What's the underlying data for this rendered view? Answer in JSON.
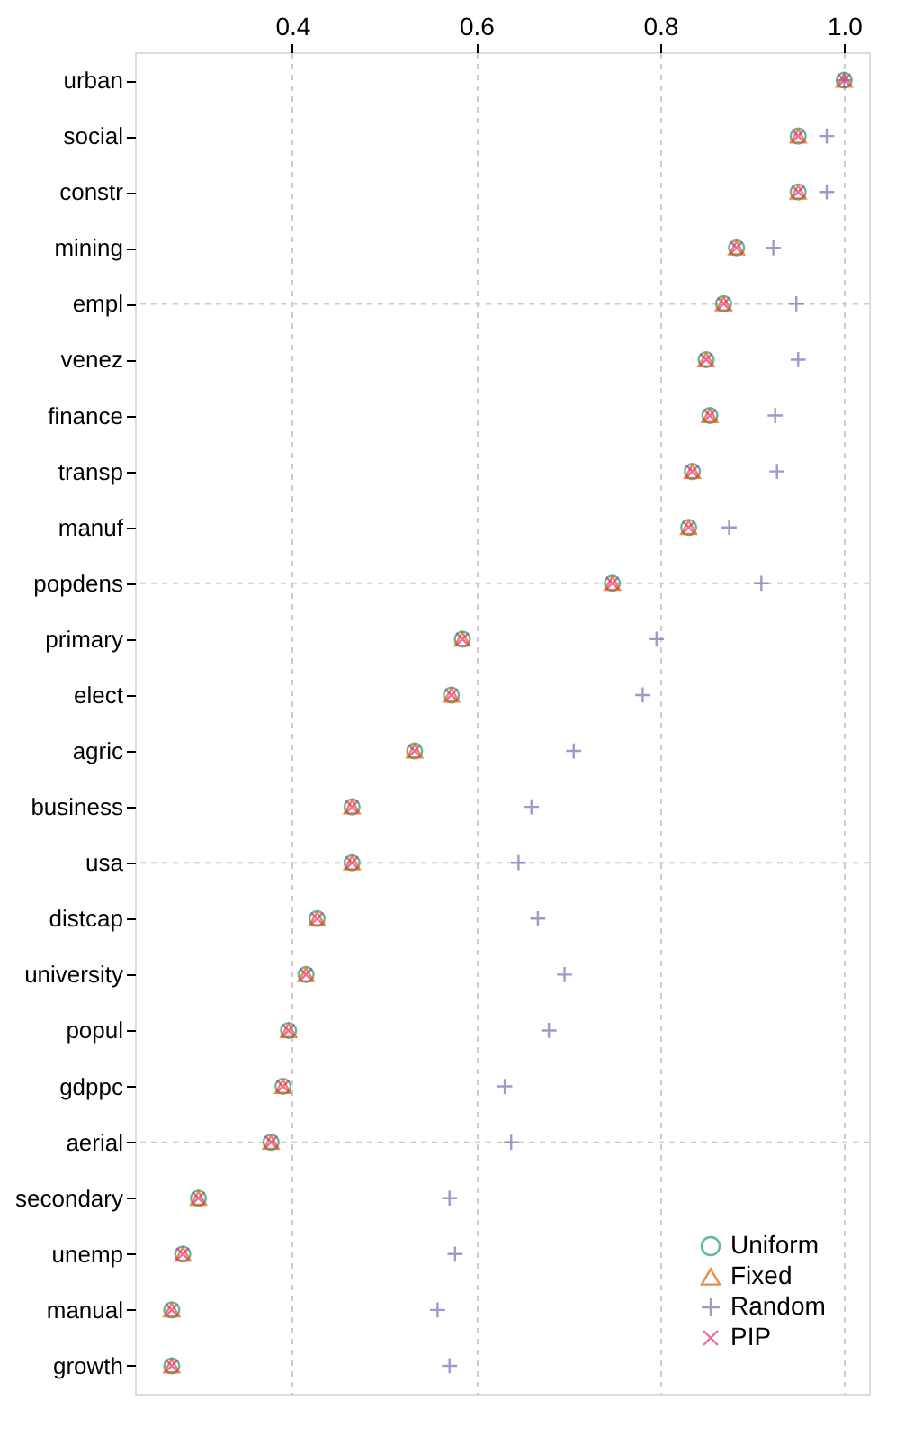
{
  "chart_data": {
    "type": "scatter",
    "categories": [
      "urban",
      "social",
      "constr",
      "mining",
      "empl",
      "venez",
      "finance",
      "transp",
      "manuf",
      "popdens",
      "primary",
      "elect",
      "agric",
      "business",
      "usa",
      "distcap",
      "university",
      "popul",
      "gdppc",
      "aerial",
      "secondary",
      "unemp",
      "manual",
      "growth"
    ],
    "series": [
      {
        "name": "Uniform",
        "color": "#1b9e77",
        "marker": "circle",
        "values": [
          1.0,
          0.95,
          0.95,
          0.883,
          0.869,
          0.85,
          0.854,
          0.835,
          0.831,
          0.748,
          0.585,
          0.573,
          0.533,
          0.465,
          0.465,
          0.427,
          0.415,
          0.396,
          0.39,
          0.377,
          0.298,
          0.281,
          0.269,
          0.269
        ]
      },
      {
        "name": "Fixed",
        "color": "#d95f02",
        "marker": "triangle",
        "values": [
          1.0,
          0.95,
          0.95,
          0.883,
          0.869,
          0.85,
          0.854,
          0.835,
          0.831,
          0.748,
          0.585,
          0.573,
          0.533,
          0.465,
          0.465,
          0.427,
          0.415,
          0.396,
          0.39,
          0.377,
          0.298,
          0.281,
          0.269,
          0.269
        ]
      },
      {
        "name": "Random",
        "color": "#7570b3",
        "marker": "plus",
        "values": [
          1.0,
          0.981,
          0.981,
          0.923,
          0.948,
          0.95,
          0.925,
          0.927,
          0.875,
          0.91,
          0.796,
          0.781,
          0.706,
          0.66,
          0.646,
          0.667,
          0.696,
          0.679,
          0.631,
          0.638,
          0.571,
          0.577,
          0.558,
          0.571
        ]
      },
      {
        "name": "PIP",
        "color": "#e7298a",
        "marker": "cross",
        "values": [
          1.0,
          0.95,
          0.95,
          0.883,
          0.869,
          0.85,
          0.854,
          0.835,
          0.831,
          0.748,
          0.585,
          0.573,
          0.533,
          0.465,
          0.465,
          0.427,
          0.415,
          0.396,
          0.39,
          0.377,
          0.298,
          0.281,
          0.269,
          0.269
        ]
      }
    ],
    "xlim": [
      0.229,
      1.027
    ],
    "xticks": [
      0.4,
      0.6,
      0.8,
      {
        "value": 1,
        "label": "1.0"
      }
    ],
    "orientation": "horizontal",
    "grid": true,
    "legend": "bottom right"
  }
}
